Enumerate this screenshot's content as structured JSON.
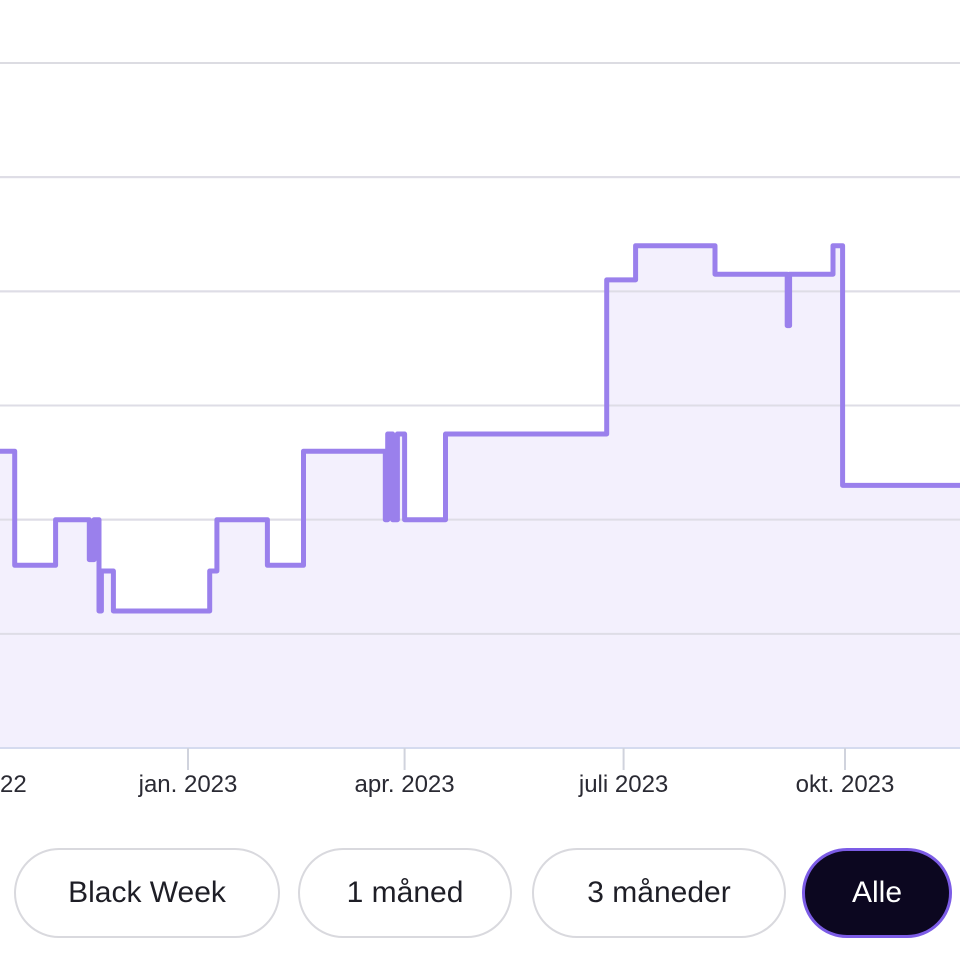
{
  "chart_data": {
    "type": "line",
    "style": "stepped line with shaded area",
    "color": "#9a80ec",
    "fill_color": "#f3f0fd",
    "grid": true,
    "grid_lines": 7,
    "x_ticks": [
      {
        "date": "2022-10-01",
        "label": "22"
      },
      {
        "date": "2023-01-01",
        "label": "jan. 2023"
      },
      {
        "date": "2023-04-01",
        "label": "apr. 2023"
      },
      {
        "date": "2023-07-01",
        "label": "juli 2023"
      },
      {
        "date": "2023-10-01",
        "label": "okt. 2023"
      }
    ],
    "ylim": [
      0,
      6
    ],
    "series": [
      {
        "x": [
          "2022-10-17",
          "2022-10-21",
          "2022-11-07",
          "2022-11-21",
          "2022-11-23",
          "2022-11-25",
          "2022-11-26",
          "2022-12-01",
          "2022-12-20",
          "2023-01-10",
          "2023-01-13",
          "2023-02-03",
          "2023-02-18",
          "2023-02-27",
          "2023-03-24",
          "2023-03-25",
          "2023-03-27",
          "2023-03-29",
          "2023-04-01",
          "2023-04-18",
          "2023-06-24",
          "2023-07-06",
          "2023-08-08",
          "2023-09-07",
          "2023-09-08",
          "2023-09-26",
          "2023-09-30"
        ],
        "y": [
          2.6,
          1.6,
          2.0,
          1.65,
          2.0,
          1.2,
          1.55,
          1.2,
          1.2,
          1.55,
          2.0,
          1.6,
          2.6,
          2.6,
          2.0,
          2.75,
          2.0,
          2.75,
          2.0,
          2.75,
          4.1,
          4.4,
          4.15,
          3.7,
          4.15,
          4.4,
          2.3
        ]
      }
    ]
  },
  "range_buttons": {
    "items": [
      {
        "label": "Black Week"
      },
      {
        "label": "1 måned"
      },
      {
        "label": "3 måneder"
      },
      {
        "label": "Alle"
      }
    ],
    "selected": "Alle"
  }
}
